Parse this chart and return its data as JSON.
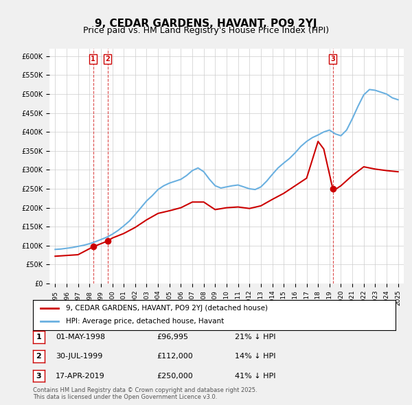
{
  "title": "9, CEDAR GARDENS, HAVANT, PO9 2YJ",
  "subtitle": "Price paid vs. HM Land Registry's House Price Index (HPI)",
  "legend_property": "9, CEDAR GARDENS, HAVANT, PO9 2YJ (detached house)",
  "legend_hpi": "HPI: Average price, detached house, Havant",
  "footer": "Contains HM Land Registry data © Crown copyright and database right 2025.\nThis data is licensed under the Open Government Licence v3.0.",
  "sales": [
    {
      "label": "1",
      "date": "01-MAY-1998",
      "year": 1998.33,
      "price": 96995,
      "pct": "21% ↓ HPI"
    },
    {
      "label": "2",
      "date": "30-JUL-1999",
      "year": 1999.58,
      "price": 112000,
      "pct": "14% ↓ HPI"
    },
    {
      "label": "3",
      "date": "17-APR-2019",
      "year": 2019.29,
      "price": 250000,
      "pct": "41% ↓ HPI"
    }
  ],
  "hpi_x": [
    1995,
    1995.5,
    1996,
    1996.5,
    1997,
    1997.5,
    1998,
    1998.5,
    1999,
    1999.5,
    2000,
    2000.5,
    2001,
    2001.5,
    2002,
    2002.5,
    2003,
    2003.5,
    2004,
    2004.5,
    2005,
    2005.5,
    2006,
    2006.5,
    2007,
    2007.5,
    2008,
    2008.5,
    2009,
    2009.5,
    2010,
    2010.5,
    2011,
    2011.5,
    2012,
    2012.5,
    2013,
    2013.5,
    2014,
    2014.5,
    2015,
    2015.5,
    2016,
    2016.5,
    2017,
    2017.5,
    2018,
    2018.5,
    2019,
    2019.5,
    2020,
    2020.5,
    2021,
    2021.5,
    2022,
    2022.5,
    2023,
    2023.5,
    2024,
    2024.5,
    2025
  ],
  "hpi_y": [
    90000,
    91000,
    93000,
    95000,
    98000,
    101000,
    105000,
    110000,
    116000,
    122000,
    130000,
    140000,
    152000,
    165000,
    182000,
    200000,
    218000,
    232000,
    248000,
    258000,
    265000,
    270000,
    275000,
    285000,
    298000,
    305000,
    295000,
    275000,
    258000,
    252000,
    255000,
    258000,
    260000,
    255000,
    250000,
    248000,
    255000,
    270000,
    288000,
    305000,
    318000,
    330000,
    345000,
    362000,
    375000,
    385000,
    392000,
    400000,
    405000,
    395000,
    390000,
    405000,
    435000,
    468000,
    498000,
    512000,
    510000,
    505000,
    500000,
    490000,
    485000
  ],
  "prop_x": [
    1995,
    1996,
    1997,
    1998.33,
    1999.58,
    2000,
    2001,
    2002,
    2003,
    2004,
    2005,
    2006,
    2007,
    2008,
    2009,
    2010,
    2011,
    2012,
    2013,
    2014,
    2015,
    2016,
    2017,
    2018,
    2018.5,
    2019.29,
    2019.5,
    2020,
    2021,
    2022,
    2023,
    2024,
    2025
  ],
  "prop_y": [
    72000,
    74000,
    76000,
    96995,
    112000,
    120000,
    132000,
    148000,
    168000,
    185000,
    192000,
    200000,
    215000,
    215000,
    195000,
    200000,
    202000,
    198000,
    205000,
    222000,
    238000,
    258000,
    278000,
    375000,
    355000,
    250000,
    248000,
    258000,
    285000,
    308000,
    302000,
    298000,
    295000
  ],
  "ylim": [
    0,
    620000
  ],
  "xlim": [
    1994.5,
    2025.5
  ],
  "yticks": [
    0,
    50000,
    100000,
    150000,
    200000,
    250000,
    300000,
    350000,
    400000,
    450000,
    500000,
    550000,
    600000
  ],
  "xticks": [
    1995,
    1996,
    1997,
    1998,
    1999,
    2000,
    2001,
    2002,
    2003,
    2004,
    2005,
    2006,
    2007,
    2008,
    2009,
    2010,
    2011,
    2012,
    2013,
    2014,
    2015,
    2016,
    2017,
    2018,
    2019,
    2020,
    2021,
    2022,
    2023,
    2024,
    2025
  ],
  "bg_color": "#f0f0f0",
  "plot_bg_color": "#ffffff",
  "hpi_color": "#6ab0e0",
  "prop_color": "#cc0000",
  "sale_marker_color": "#cc0000",
  "vline_color": "#cc0000",
  "title_fontsize": 11,
  "subtitle_fontsize": 9
}
